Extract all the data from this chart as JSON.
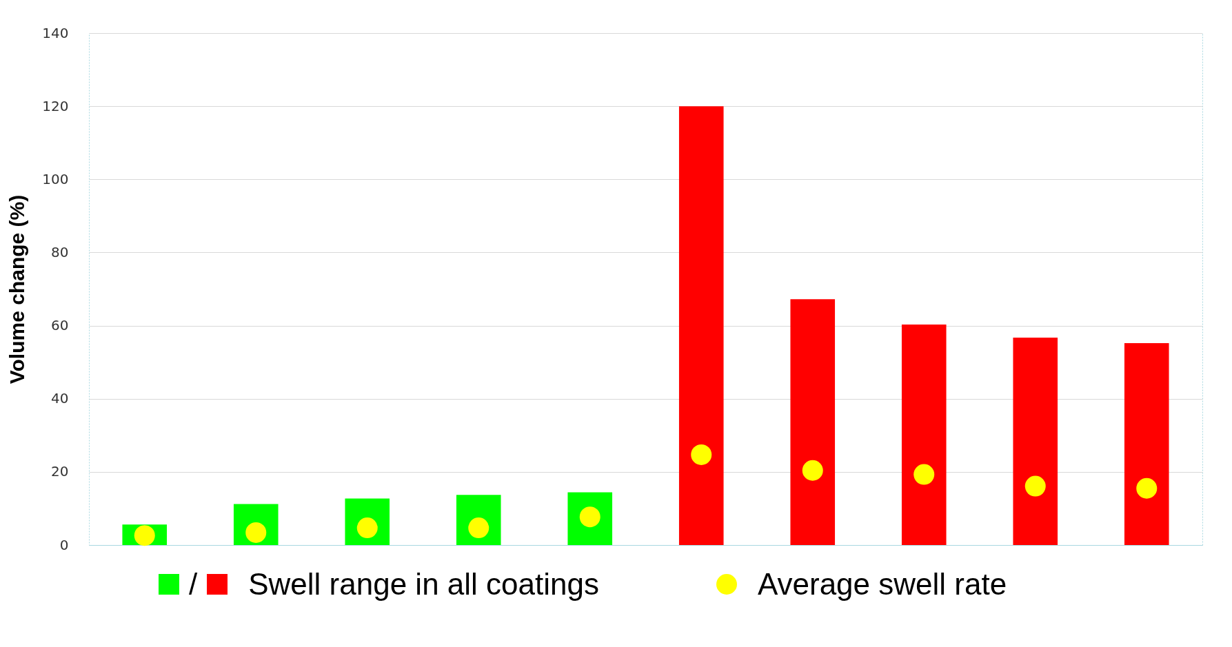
{
  "chart_data": {
    "type": "bar",
    "ylabel": "Volume change (%)",
    "categories": [
      null,
      null,
      null,
      null,
      null,
      null,
      null,
      null,
      null,
      null
    ],
    "series": [
      {
        "name": "Swell range in all coatings",
        "colors": [
          "#00ff00",
          "#00ff00",
          "#00ff00",
          "#00ff00",
          "#00ff00",
          "#ff0000",
          "#ff0000",
          "#ff0000",
          "#ff0000",
          "#ff0000"
        ],
        "values": [
          5.6,
          11.2,
          12.7,
          13.7,
          14.4,
          120,
          67.2,
          60.3,
          56.7,
          55.2
        ]
      },
      {
        "name": "Average swell rate",
        "type": "scatter",
        "color": "#ffff00",
        "marker": "circle",
        "values": [
          2.6,
          3.4,
          4.7,
          4.7,
          7.7,
          24.7,
          20.4,
          19.3,
          16.1,
          15.5
        ]
      }
    ],
    "ylim": [
      0,
      140
    ],
    "yticks": [
      0,
      20,
      40,
      60,
      80,
      100,
      120,
      140
    ],
    "grid": "y",
    "legend": "bottom",
    "annotations": [
      "/"
    ]
  }
}
